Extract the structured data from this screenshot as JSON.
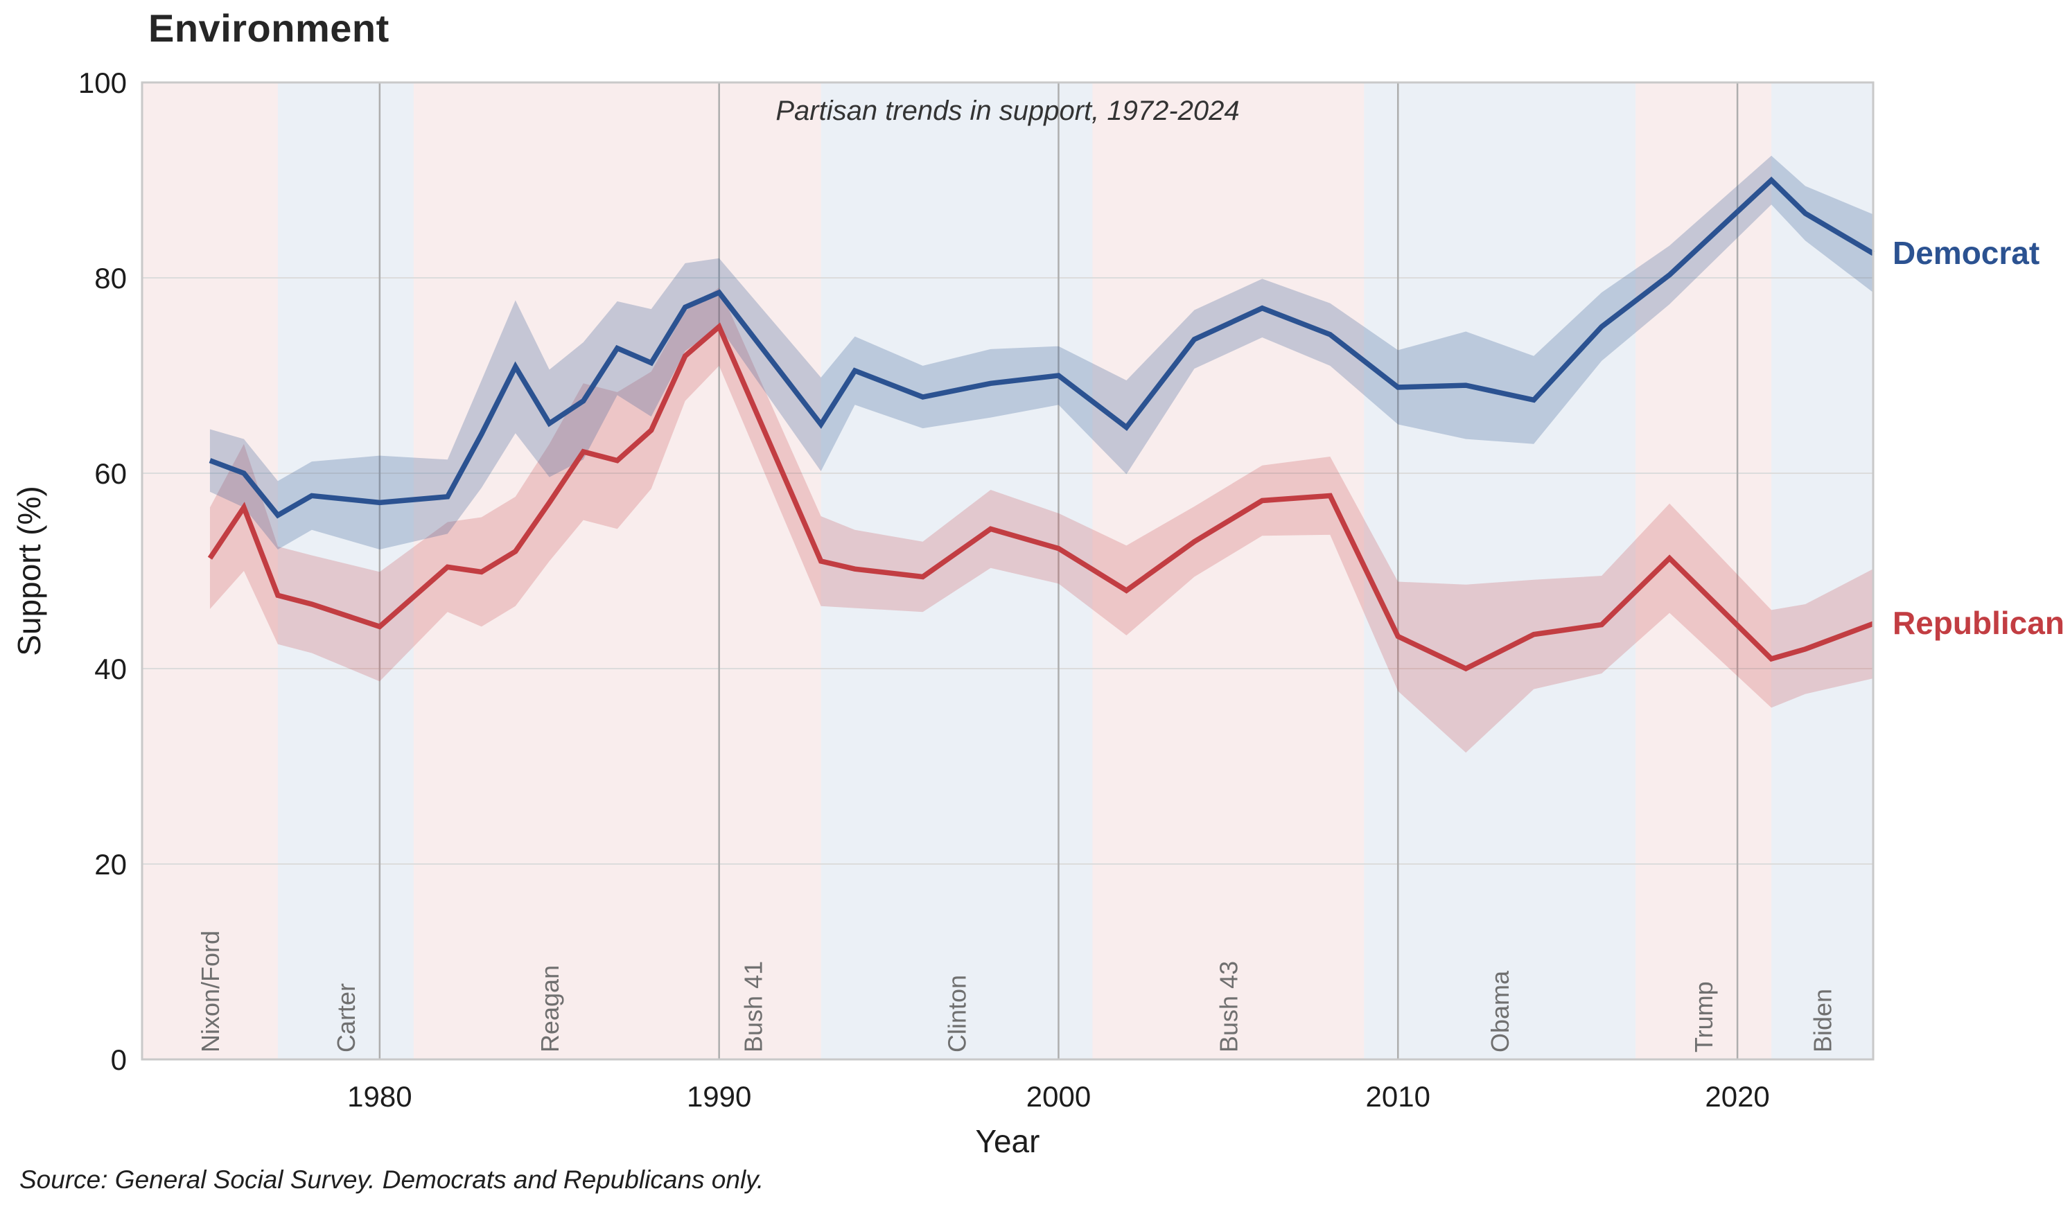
{
  "title": "Environment",
  "subtitle": "Partisan trends in support, 1972-2024",
  "source_note": "Source: General Social Survey. Democrats and Republicans only.",
  "x_axis_label": "Year",
  "y_axis_label": "Support (%)",
  "end_labels": {
    "dem": "Democrat",
    "rep": "Republican"
  },
  "y_ticks": [
    0,
    20,
    40,
    60,
    80,
    100
  ],
  "x_ticks": [
    1980,
    1990,
    2000,
    2010,
    2020
  ],
  "colors": {
    "dem_line": "#2b5291",
    "rep_line": "#c23d42",
    "dem_band": "#2b5291",
    "rep_band": "#c23d42",
    "era_red": "#c0504d",
    "era_blue": "#5b84b1",
    "grid_horizontal": "#dcdcdc",
    "grid_vertical": "#aeaeae",
    "spine": "#c9c9c9",
    "president_label": "#6f6f6f",
    "tick_text": "#1c1c1c",
    "title_text": "#262626"
  },
  "eras": [
    {
      "label": "Nixon/Ford",
      "party": "R",
      "start": 1973,
      "end": 1977,
      "label_year": 1975
    },
    {
      "label": "Carter",
      "party": "D",
      "start": 1977,
      "end": 1981,
      "label_year": 1979
    },
    {
      "label": "Reagan",
      "party": "R",
      "start": 1981,
      "end": 1989,
      "label_year": 1985
    },
    {
      "label": "Bush 41",
      "party": "R",
      "start": 1989,
      "end": 1993,
      "label_year": 1991
    },
    {
      "label": "Clinton",
      "party": "D",
      "start": 1993,
      "end": 2001,
      "label_year": 1997
    },
    {
      "label": "Bush 43",
      "party": "R",
      "start": 2001,
      "end": 2009,
      "label_year": 2005
    },
    {
      "label": "Obama",
      "party": "D",
      "start": 2009,
      "end": 2017,
      "label_year": 2013
    },
    {
      "label": "Trump",
      "party": "R",
      "start": 2017,
      "end": 2021,
      "label_year": 2019
    },
    {
      "label": "Biden",
      "party": "D",
      "start": 2021,
      "end": 2024,
      "label_year": 2022.5
    }
  ],
  "chart_data": {
    "type": "line",
    "title": "Environment",
    "subtitle": "Partisan trends in support, 1972-2024",
    "xlabel": "Year",
    "ylabel": "Support (%)",
    "xlim": [
      1973,
      2024
    ],
    "ylim": [
      0,
      100
    ],
    "grid": true,
    "x": [
      1975,
      1976,
      1977,
      1978,
      1980,
      1982,
      1983,
      1984,
      1985,
      1986,
      1987,
      1988,
      1989,
      1990,
      1993,
      1994,
      1996,
      1998,
      2000,
      2002,
      2004,
      2006,
      2008,
      2010,
      2012,
      2014,
      2016,
      2018,
      2021,
      2022,
      2024
    ],
    "series": [
      {
        "name": "Democrat",
        "color_key": "dem_line",
        "band_color_key": "dem_band",
        "band_opacity": 0.25,
        "values": [
          61.3,
          60.0,
          55.7,
          57.7,
          57.0,
          57.6,
          64.0,
          70.9,
          65.1,
          67.4,
          72.8,
          71.3,
          77.0,
          78.5,
          65.0,
          70.5,
          67.8,
          69.2,
          70.0,
          64.7,
          73.7,
          76.9,
          74.2,
          68.8,
          69.0,
          67.5,
          75.0,
          80.3,
          90.0,
          86.6,
          82.5
        ],
        "lo": [
          58.1,
          56.5,
          52.2,
          54.2,
          52.2,
          53.8,
          58.5,
          64.1,
          59.6,
          61.4,
          68.0,
          65.8,
          72.5,
          75.0,
          60.2,
          67.0,
          64.6,
          65.7,
          67.0,
          59.9,
          70.7,
          73.9,
          71.0,
          65.0,
          63.5,
          63.0,
          71.5,
          77.3,
          87.5,
          83.8,
          78.5
        ],
        "hi": [
          64.5,
          63.5,
          59.2,
          61.2,
          61.8,
          61.4,
          69.5,
          77.7,
          70.6,
          73.4,
          77.6,
          76.8,
          81.5,
          82.0,
          69.8,
          74.0,
          71.0,
          72.7,
          73.0,
          69.5,
          76.7,
          79.9,
          77.4,
          72.6,
          74.5,
          72.0,
          78.5,
          83.3,
          92.5,
          89.4,
          86.5
        ]
      },
      {
        "name": "Republican",
        "color_key": "rep_line",
        "band_color_key": "rep_band",
        "band_opacity": 0.22,
        "values": [
          51.3,
          56.5,
          47.5,
          46.6,
          44.3,
          50.4,
          49.9,
          52.0,
          57.0,
          62.2,
          61.3,
          64.4,
          72.0,
          75.0,
          51.0,
          50.2,
          49.4,
          54.3,
          52.3,
          48.0,
          53.0,
          57.2,
          57.7,
          43.3,
          40.0,
          43.5,
          44.5,
          51.3,
          41.0,
          42.0,
          44.6
        ],
        "lo": [
          46.1,
          50.0,
          42.5,
          41.6,
          38.7,
          45.8,
          44.3,
          46.4,
          51.0,
          55.2,
          54.3,
          58.4,
          67.4,
          71.0,
          46.4,
          46.2,
          45.8,
          50.3,
          48.7,
          43.4,
          49.4,
          53.6,
          53.7,
          37.7,
          31.4,
          37.9,
          39.5,
          45.7,
          36.0,
          37.4,
          39.0
        ],
        "hi": [
          56.5,
          63.0,
          52.5,
          51.6,
          49.9,
          55.0,
          55.5,
          57.6,
          63.0,
          69.2,
          68.3,
          70.4,
          76.6,
          79.0,
          55.6,
          54.2,
          53.0,
          58.3,
          55.9,
          52.6,
          56.6,
          60.8,
          61.7,
          48.9,
          48.6,
          49.1,
          49.5,
          56.9,
          46.0,
          46.6,
          50.2
        ]
      }
    ]
  }
}
